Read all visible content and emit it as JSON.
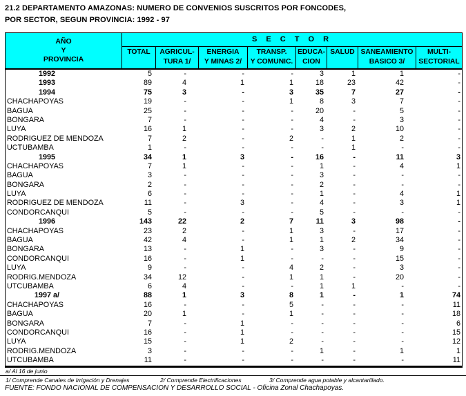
{
  "title": "21.2  DEPARTAMENTO AMAZONAS: NUMERO DE CONVENIOS SUSCRITOS POR FONCODES,\nPOR SECTOR, SEGUN PROVINCIA: 1992 - 97",
  "colors": {
    "header_bg": "#00ffff",
    "border": "#000000",
    "text": "#000000"
  },
  "table": {
    "header": {
      "row_col": "AÑO\nY\nPROVINCIA",
      "sector": "S E C T O R",
      "cols": [
        "TOTAL",
        "AGRICUL-\nTURA 1/",
        "ENERGIA\nY MINAS 2/",
        "TRANSP.\nY COMUNIC.",
        "EDUCA-\nCION",
        "SALUD",
        "SANEAMIENTO\nBASICO 3/",
        "MULTI-\nSECTORIAL"
      ]
    },
    "column_keys": [
      "total",
      "agricultura",
      "energia-minas",
      "transp-comunic",
      "educacion",
      "salud",
      "saneamiento-basico",
      "multisectorial"
    ],
    "rows": [
      {
        "label": "1992",
        "year": true,
        "bold_values": false,
        "values": [
          "5",
          "-",
          "-",
          "-",
          "3",
          "1",
          "1",
          "-"
        ]
      },
      {
        "label": "1993",
        "year": true,
        "bold_values": false,
        "values": [
          "89",
          "4",
          "1",
          "1",
          "18",
          "23",
          "42",
          "-"
        ]
      },
      {
        "label": "1994",
        "year": true,
        "bold_values": true,
        "values": [
          "75",
          "3",
          "-",
          "3",
          "35",
          "7",
          "27",
          "-"
        ]
      },
      {
        "label": "CHACHAPOYAS",
        "values": [
          "19",
          "-",
          "-",
          "1",
          "8",
          "3",
          "7",
          "-"
        ]
      },
      {
        "label": "BAGUA",
        "values": [
          "25",
          "-",
          "-",
          "-",
          "20",
          "-",
          "5",
          "-"
        ]
      },
      {
        "label": "BONGARA",
        "values": [
          "7",
          "-",
          "-",
          "-",
          "4",
          "-",
          "3",
          "-"
        ]
      },
      {
        "label": "LUYA",
        "values": [
          "16",
          "1",
          "-",
          "-",
          "3",
          "2",
          "10",
          "-"
        ]
      },
      {
        "label": "RODRIGUEZ DE MENDOZA",
        "values": [
          "7",
          "2",
          "-",
          "2",
          "-",
          "1",
          "2",
          "-"
        ]
      },
      {
        "label": "UCTUBAMBA",
        "values": [
          "1",
          "-",
          "-",
          "-",
          "-",
          "1",
          "-",
          "-"
        ]
      },
      {
        "label": "1995",
        "year": true,
        "bold_values": true,
        "values": [
          "34",
          "1",
          "3",
          "-",
          "16",
          "-",
          "11",
          "3"
        ]
      },
      {
        "label": "CHACHAPOYAS",
        "values": [
          "7",
          "1",
          "-",
          "-",
          "1",
          "-",
          "4",
          "1"
        ]
      },
      {
        "label": "BAGUA",
        "values": [
          "3",
          "-",
          "-",
          "-",
          "3",
          "-",
          "-",
          "-"
        ]
      },
      {
        "label": "BONGARA",
        "values": [
          "2",
          "-",
          "-",
          "-",
          "2",
          "-",
          "-",
          "-"
        ]
      },
      {
        "label": "LUYA",
        "values": [
          "6",
          "-",
          "-",
          "-",
          "1",
          "-",
          "4",
          "1"
        ]
      },
      {
        "label": "RODRIGUEZ DE MENDOZA",
        "values": [
          "11",
          "-",
          "3",
          "-",
          "4",
          "-",
          "3",
          "1"
        ]
      },
      {
        "label": "CONDORCANQUI",
        "values": [
          "5",
          "-",
          "-",
          "-",
          "5",
          "-",
          "-",
          "-"
        ]
      },
      {
        "label": "1996",
        "year": true,
        "bold_values": true,
        "values": [
          "143",
          "22",
          "2",
          "7",
          "11",
          "3",
          "98",
          "-"
        ]
      },
      {
        "label": "CHACHAPOYAS",
        "values": [
          "23",
          "2",
          "-",
          "1",
          "3",
          "-",
          "17",
          "-"
        ]
      },
      {
        "label": "BAGUA",
        "values": [
          "42",
          "4",
          "-",
          "1",
          "1",
          "2",
          "34",
          "-"
        ]
      },
      {
        "label": "BONGARA",
        "values": [
          "13",
          "-",
          "1",
          "-",
          "3",
          "-",
          "9",
          "-"
        ]
      },
      {
        "label": "CONDORCANQUI",
        "values": [
          "16",
          "-",
          "1",
          "-",
          "-",
          "-",
          "15",
          "-"
        ]
      },
      {
        "label": "LUYA",
        "values": [
          "9",
          "-",
          "-",
          "4",
          "2",
          "-",
          "3",
          "-"
        ]
      },
      {
        "label": "RODRIG.MENDOZA",
        "values": [
          "34",
          "12",
          "-",
          "1",
          "1",
          "-",
          "20",
          "-"
        ]
      },
      {
        "label": "UTCUBAMBA",
        "values": [
          "6",
          "4",
          "-",
          "-",
          "1",
          "1",
          "-",
          "-"
        ]
      },
      {
        "label": "1997  a/",
        "year": true,
        "bold_values": true,
        "values": [
          "88",
          "1",
          "3",
          "8",
          "1",
          "-",
          "1",
          "74"
        ]
      },
      {
        "label": "CHACHAPOYAS",
        "values": [
          "16",
          "-",
          "-",
          "5",
          "-",
          "-",
          "-",
          "11"
        ]
      },
      {
        "label": "BAGUA",
        "values": [
          "20",
          "1",
          "-",
          "1",
          "-",
          "-",
          "-",
          "18"
        ]
      },
      {
        "label": "BONGARA",
        "values": [
          "7",
          "-",
          "1",
          "-",
          "-",
          "-",
          "-",
          "6"
        ]
      },
      {
        "label": "CONDORCANQUI",
        "values": [
          "16",
          "-",
          "1",
          "-",
          "-",
          "-",
          "-",
          "15"
        ]
      },
      {
        "label": "LUYA",
        "values": [
          "15",
          "-",
          "1",
          "2",
          "-",
          "-",
          "-",
          "12"
        ]
      },
      {
        "label": "RODRIG.MENDOZA",
        "values": [
          "3",
          "-",
          "-",
          "-",
          "1",
          "-",
          "1",
          "1"
        ]
      },
      {
        "label": "UTCUBAMBA",
        "values": [
          "11",
          "-",
          "-",
          "-",
          "-",
          "-",
          "-",
          "11"
        ]
      }
    ]
  },
  "footnotes": {
    "a_note": "a/ Al  16 de junio",
    "note1": "1/ Comprende Canales de Irrigación y Drenajes",
    "note2": "2/ Comprende Electrificaciones",
    "note3": "3/ Comprende agua potable y alcantarillado.",
    "source": "FUENTE: FONDO NACIONAL DE COMPENSACION Y DESARROLLO SOCIAL - Oficina Zonal Chachapoyas."
  }
}
